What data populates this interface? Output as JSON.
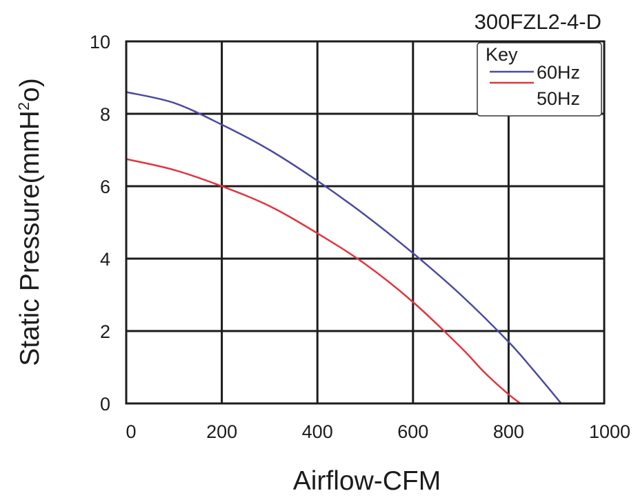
{
  "chart_data": {
    "type": "line",
    "title": "300FZL2-4-D",
    "xlabel": "Airflow-CFM",
    "ylabel": "Static Pressure(mmH2o)",
    "xlim": [
      0,
      1000
    ],
    "ylim": [
      0,
      10
    ],
    "x_ticks": [
      "0",
      "200",
      "400",
      "600",
      "800",
      "1000"
    ],
    "y_ticks": [
      "0",
      "2",
      "4",
      "6",
      "8",
      "10"
    ],
    "grid": true,
    "legend": {
      "title": "Key",
      "placement": "top-right",
      "entries": [
        "60Hz",
        "50Hz"
      ]
    },
    "series": [
      {
        "name": "60Hz",
        "color": "#4a4aa0",
        "x": [
          0,
          100,
          200,
          300,
          400,
          500,
          600,
          700,
          800,
          850,
          910
        ],
        "y": [
          8.6,
          8.3,
          7.7,
          7.0,
          6.15,
          5.2,
          4.15,
          3.0,
          1.7,
          0.95,
          0
        ]
      },
      {
        "name": "50Hz",
        "color": "#e0363e",
        "x": [
          0,
          100,
          200,
          300,
          400,
          500,
          600,
          700,
          750,
          800,
          825
        ],
        "y": [
          6.75,
          6.45,
          6.0,
          5.45,
          4.7,
          3.85,
          2.8,
          1.55,
          0.85,
          0.25,
          0
        ]
      }
    ]
  }
}
